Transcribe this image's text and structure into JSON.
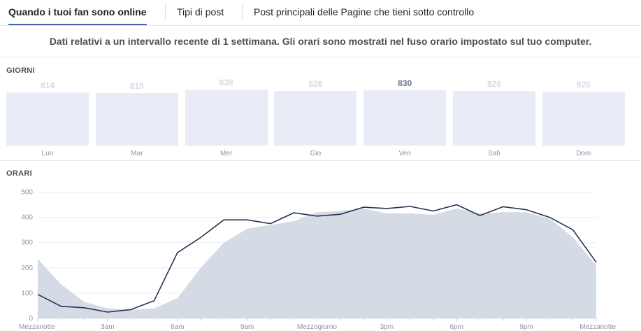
{
  "tabs": [
    {
      "label": "Quando i tuoi fan sono online",
      "active": true
    },
    {
      "label": "Tipi di post",
      "active": false
    },
    {
      "label": "Post principali delle Pagine che tieni sotto controllo",
      "active": false
    }
  ],
  "notice": "Dati relativi a un intervallo recente di 1 settimana. Gli orari sono mostrati nel fuso orario impostato sul tuo computer.",
  "days_section": {
    "label": "GIORNI",
    "highlight_color": "#6a7695",
    "bar_color": "#e9ebf7",
    "days": [
      {
        "name": "Lun",
        "value": "814",
        "count": 814,
        "highlight": false
      },
      {
        "name": "Mar",
        "value": "810",
        "count": 810,
        "highlight": false
      },
      {
        "name": "Mer",
        "value": "838",
        "count": 838,
        "highlight": false
      },
      {
        "name": "Gio",
        "value": "828",
        "count": 828,
        "highlight": false
      },
      {
        "name": "Ven",
        "value": "830",
        "count": 830,
        "highlight": true
      },
      {
        "name": "Sab",
        "value": "826",
        "count": 826,
        "highlight": false
      },
      {
        "name": "Dom",
        "value": "820",
        "count": 820,
        "highlight": false
      }
    ]
  },
  "hours_section": {
    "label": "ORARI"
  },
  "chart_data": {
    "type": "area",
    "ylim": [
      0,
      540
    ],
    "y_ticks": [
      0,
      100,
      200,
      300,
      400,
      500
    ],
    "x_tick_labels": [
      {
        "hour": 0,
        "label": "Mezzanotte"
      },
      {
        "hour": 3,
        "label": "3am"
      },
      {
        "hour": 6,
        "label": "6am"
      },
      {
        "hour": 9,
        "label": "9am"
      },
      {
        "hour": 12,
        "label": "Mezzogiorno"
      },
      {
        "hour": 15,
        "label": "3pm"
      },
      {
        "hour": 18,
        "label": "6pm"
      },
      {
        "hour": 21,
        "label": "9pm"
      },
      {
        "hour": 24,
        "label": "Mezzanotte"
      }
    ],
    "hours": [
      0,
      1,
      2,
      3,
      4,
      5,
      6,
      7,
      8,
      9,
      10,
      11,
      12,
      13,
      14,
      15,
      16,
      17,
      18,
      19,
      20,
      21,
      22,
      23,
      24
    ],
    "series": [
      {
        "kind": "area",
        "color": "#d5dbe4",
        "values": [
          235,
          135,
          65,
          40,
          35,
          40,
          80,
          200,
          300,
          355,
          370,
          385,
          420,
          425,
          435,
          415,
          415,
          410,
          435,
          415,
          420,
          420,
          395,
          320,
          210
        ]
      },
      {
        "kind": "line",
        "color": "#28334e",
        "values": [
          95,
          48,
          42,
          25,
          35,
          70,
          260,
          320,
          390,
          390,
          375,
          418,
          405,
          412,
          440,
          435,
          443,
          425,
          450,
          407,
          442,
          430,
          400,
          350,
          222
        ]
      }
    ]
  }
}
